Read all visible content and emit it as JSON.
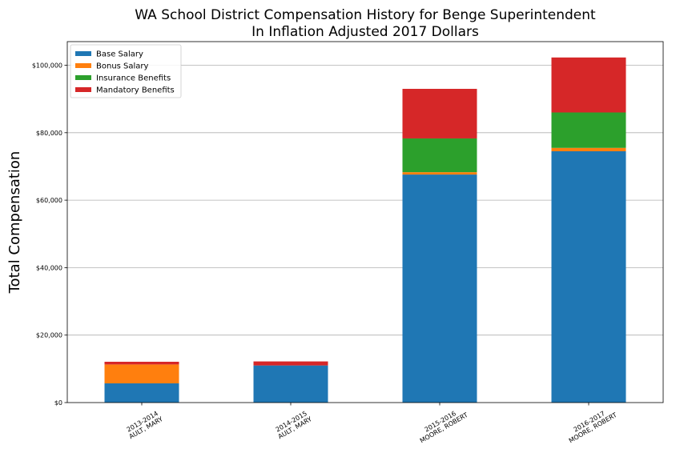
{
  "chart_data": {
    "type": "bar",
    "stacked": true,
    "title": "WA School District Compensation History for Benge Superintendent",
    "subtitle": "In Inflation Adjusted 2017 Dollars",
    "xlabel": "",
    "ylabel": "Total Compensation",
    "ylim": [
      0,
      107000
    ],
    "yticks": [
      0,
      20000,
      40000,
      60000,
      80000,
      100000
    ],
    "ytick_labels": [
      "$0",
      "$20,000",
      "$40,000",
      "$60,000",
      "$80,000",
      "$100,000"
    ],
    "grid": "horizontal",
    "legend_position": "top-left",
    "categories": [
      [
        "2013-2014",
        "AULT, MARY"
      ],
      [
        "2014-2015",
        "AULT, MARY"
      ],
      [
        "2015-2016",
        "MOORE, ROBERT"
      ],
      [
        "2016-2017",
        "MOORE, ROBERT"
      ]
    ],
    "series": [
      {
        "name": "Base Salary",
        "color": "#1f77b4",
        "values": [
          5700,
          11000,
          67600,
          74500
        ]
      },
      {
        "name": "Bonus Salary",
        "color": "#ff7f0e",
        "values": [
          5600,
          0,
          700,
          1000
        ]
      },
      {
        "name": "Insurance Benefits",
        "color": "#2ca02c",
        "values": [
          0,
          0,
          10000,
          10500
        ]
      },
      {
        "name": "Mandatory Benefits",
        "color": "#d62728",
        "values": [
          800,
          1200,
          14700,
          16300
        ]
      }
    ]
  }
}
